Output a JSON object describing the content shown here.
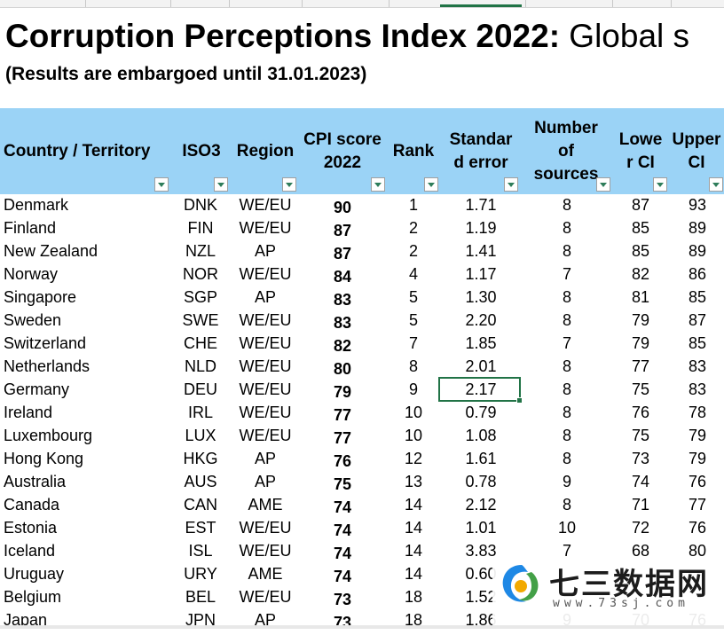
{
  "sheet": {
    "title_bold": "Corruption Perceptions Index 2022:",
    "title_rest": " Global s",
    "subtitle": "(Results are embargoed until 31.01.2023)"
  },
  "columns": {
    "country": "Country / Territory",
    "iso3": "ISO3",
    "region": "Region",
    "cpi_score": [
      "CPI score",
      "2022"
    ],
    "rank": "Rank",
    "std_error": [
      "Standar",
      "d error"
    ],
    "sources": [
      "Number",
      "of",
      "sources"
    ],
    "lower_ci": [
      "Lowe",
      "r CI"
    ],
    "upper_ci": [
      "Upper",
      "CI"
    ]
  },
  "rows": [
    {
      "country": "Denmark",
      "iso": "DNK",
      "region": "WE/EU",
      "score": "90",
      "rank": "1",
      "se": "1.71",
      "src": "8",
      "lci": "87",
      "uci": "93"
    },
    {
      "country": "Finland",
      "iso": "FIN",
      "region": "WE/EU",
      "score": "87",
      "rank": "2",
      "se": "1.19",
      "src": "8",
      "lci": "85",
      "uci": "89"
    },
    {
      "country": "New Zealand",
      "iso": "NZL",
      "region": "AP",
      "score": "87",
      "rank": "2",
      "se": "1.41",
      "src": "8",
      "lci": "85",
      "uci": "89"
    },
    {
      "country": "Norway",
      "iso": "NOR",
      "region": "WE/EU",
      "score": "84",
      "rank": "4",
      "se": "1.17",
      "src": "7",
      "lci": "82",
      "uci": "86"
    },
    {
      "country": "Singapore",
      "iso": "SGP",
      "region": "AP",
      "score": "83",
      "rank": "5",
      "se": "1.30",
      "src": "8",
      "lci": "81",
      "uci": "85"
    },
    {
      "country": "Sweden",
      "iso": "SWE",
      "region": "WE/EU",
      "score": "83",
      "rank": "5",
      "se": "2.20",
      "src": "8",
      "lci": "79",
      "uci": "87"
    },
    {
      "country": "Switzerland",
      "iso": "CHE",
      "region": "WE/EU",
      "score": "82",
      "rank": "7",
      "se": "1.85",
      "src": "7",
      "lci": "79",
      "uci": "85"
    },
    {
      "country": "Netherlands",
      "iso": "NLD",
      "region": "WE/EU",
      "score": "80",
      "rank": "8",
      "se": "2.01",
      "src": "8",
      "lci": "77",
      "uci": "83"
    },
    {
      "country": "Germany",
      "iso": "DEU",
      "region": "WE/EU",
      "score": "79",
      "rank": "9",
      "se": "2.17",
      "src": "8",
      "lci": "75",
      "uci": "83"
    },
    {
      "country": "Ireland",
      "iso": "IRL",
      "region": "WE/EU",
      "score": "77",
      "rank": "10",
      "se": "0.79",
      "src": "8",
      "lci": "76",
      "uci": "78"
    },
    {
      "country": "Luxembourg",
      "iso": "LUX",
      "region": "WE/EU",
      "score": "77",
      "rank": "10",
      "se": "1.08",
      "src": "8",
      "lci": "75",
      "uci": "79"
    },
    {
      "country": "Hong Kong",
      "iso": "HKG",
      "region": "AP",
      "score": "76",
      "rank": "12",
      "se": "1.61",
      "src": "8",
      "lci": "73",
      "uci": "79"
    },
    {
      "country": "Australia",
      "iso": "AUS",
      "region": "AP",
      "score": "75",
      "rank": "13",
      "se": "0.78",
      "src": "9",
      "lci": "74",
      "uci": "76"
    },
    {
      "country": "Canada",
      "iso": "CAN",
      "region": "AME",
      "score": "74",
      "rank": "14",
      "se": "2.12",
      "src": "8",
      "lci": "71",
      "uci": "77"
    },
    {
      "country": "Estonia",
      "iso": "EST",
      "region": "WE/EU",
      "score": "74",
      "rank": "14",
      "se": "1.01",
      "src": "10",
      "lci": "72",
      "uci": "76"
    },
    {
      "country": "Iceland",
      "iso": "ISL",
      "region": "WE/EU",
      "score": "74",
      "rank": "14",
      "se": "3.83",
      "src": "7",
      "lci": "68",
      "uci": "80"
    },
    {
      "country": "Uruguay",
      "iso": "URY",
      "region": "AME",
      "score": "74",
      "rank": "14",
      "se": "0.60",
      "src": "",
      "lci": "",
      "uci": ""
    },
    {
      "country": "Belgium",
      "iso": "BEL",
      "region": "WE/EU",
      "score": "73",
      "rank": "18",
      "se": "1.52",
      "src": "",
      "lci": "",
      "uci": ""
    },
    {
      "country": "Japan",
      "iso": "JPN",
      "region": "AP",
      "score": "73",
      "rank": "18",
      "se": "1.86",
      "src": "9",
      "lci": "70",
      "uci": "76"
    }
  ],
  "watermark": {
    "name": "七三数据网",
    "url": "www.73sj.com",
    "logo_colors": [
      "#1e88e5",
      "#f2a900"
    ]
  },
  "colors": {
    "header_bg": "#9bd3f6",
    "selection": "#217346"
  }
}
